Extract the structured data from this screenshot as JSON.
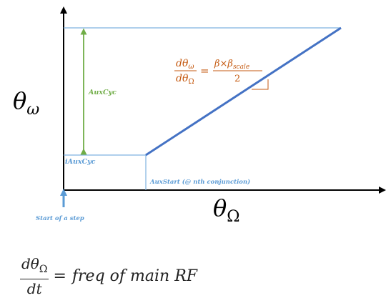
{
  "labels": {
    "y_axis_symbol": "θ",
    "y_axis_subscript": "ω",
    "x_axis_symbol": "θ",
    "x_axis_subscript": "Ω",
    "aux_cyc": "AuxCyc",
    "i_aux_cyc": "iAuxCyc",
    "aux_start": "AuxStart (@ nth conjunction)",
    "start_of_step": "Start of a step"
  },
  "slope_formula": {
    "num_d": "dθ",
    "num_sub": "ω",
    "den_d": "dθ",
    "den_sub": "Ω",
    "equals": "=",
    "rhs_num_beta": "β×β",
    "rhs_num_sub": "scale",
    "rhs_den": "2"
  },
  "bottom_formula": {
    "num_d": "dθ",
    "num_sub": "Ω",
    "den": "dt",
    "equals": "=",
    "rhs": "freq of main RF"
  },
  "colors": {
    "axis": "#000000",
    "line": "#4472c4",
    "guide": "#7fb2e0",
    "label_blue": "#5b9bd5",
    "arrow_green": "#70ad47",
    "formula_orange": "#c55a11"
  }
}
